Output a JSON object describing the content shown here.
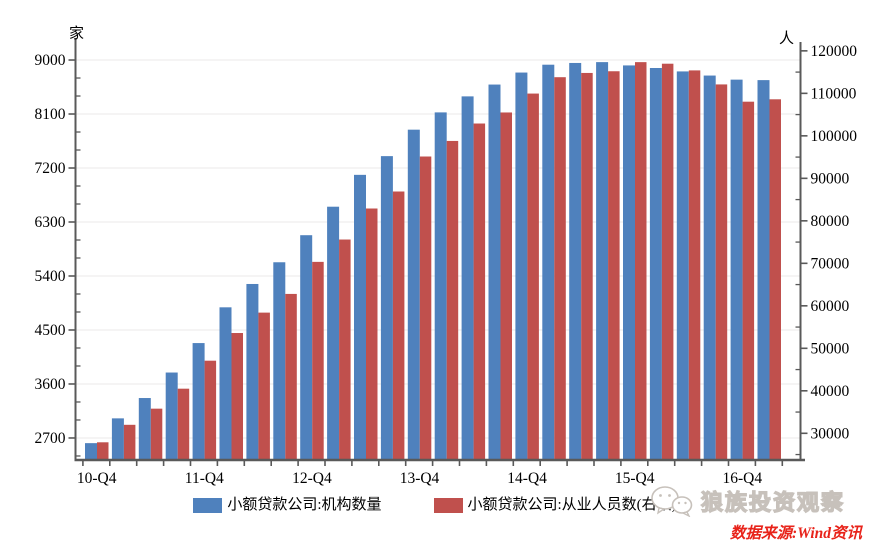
{
  "chart_data": {
    "type": "bar",
    "title": "",
    "categories": [
      "10-Q4",
      "11-Q1",
      "11-Q2",
      "11-Q3",
      "11-Q4",
      "12-Q1",
      "12-Q2",
      "12-Q3",
      "12-Q4",
      "13-Q1",
      "13-Q2",
      "13-Q3",
      "13-Q4",
      "14-Q1",
      "14-Q2",
      "14-Q3",
      "14-Q4",
      "15-Q1",
      "15-Q2",
      "15-Q3",
      "15-Q4",
      "16-Q1",
      "16-Q2",
      "16-Q3",
      "16-Q4",
      "17-Q1"
    ],
    "x_tick_labels": [
      "10-Q4",
      "11-Q4",
      "12-Q4",
      "13-Q4",
      "14-Q4",
      "15-Q4",
      "16-Q4"
    ],
    "x_tick_label_every": 4,
    "series": [
      {
        "name": "小额贷款公司:机构数量",
        "axis": "left",
        "color": "#4F81BD",
        "values": [
          2614,
          3027,
          3366,
          3791,
          4282,
          4878,
          5267,
          5629,
          6080,
          6555,
          7086,
          7398,
          7839,
          8127,
          8394,
          8591,
          8791,
          8922,
          8951,
          8965,
          8910,
          8867,
          8810,
          8741,
          8673,
          8665
        ]
      },
      {
        "name": "小额贷款公司:从业人员数(右轴)",
        "axis": "right",
        "color": "#C0504D",
        "values": [
          27884,
          32000,
          35800,
          40500,
          47088,
          53600,
          58400,
          62800,
          70343,
          75600,
          82900,
          86900,
          95136,
          98800,
          102900,
          105500,
          109948,
          113800,
          114800,
          115200,
          117344,
          116974,
          115400,
          112100,
          108037,
          108600
        ]
      }
    ],
    "left_axis": {
      "unit": "家",
      "ticks": [
        2700,
        3600,
        4500,
        5400,
        6300,
        7200,
        8100,
        9000
      ],
      "minor_step": 300,
      "range": [
        2333,
        9217
      ]
    },
    "right_axis": {
      "unit": "人",
      "ticks": [
        30000,
        40000,
        50000,
        60000,
        70000,
        80000,
        90000,
        100000,
        110000,
        120000
      ],
      "minor_step": 5000,
      "range": [
        23718,
        120906
      ]
    },
    "grid": "horizontal-major-left",
    "legend_position": "bottom"
  },
  "legend": {
    "items": [
      {
        "label": "小额贷款公司:机构数量",
        "color": "#4F81BD"
      },
      {
        "label": "小额贷款公司:从业人员数(右轴)",
        "color": "#C0504D"
      }
    ]
  },
  "watermark": {
    "label": "狼族投资观察",
    "icon": "wechat-icon"
  },
  "source_note": "数据来源:Wind资讯",
  "colors": {
    "institutions_blue": "#4F81BD",
    "employees_red": "#C0504D",
    "grid_line": "#efeeed",
    "axis_line": "#595959",
    "tick_text": "#000000",
    "source_red": "#e8231a",
    "watermark_gray": "#c7c1bb"
  }
}
